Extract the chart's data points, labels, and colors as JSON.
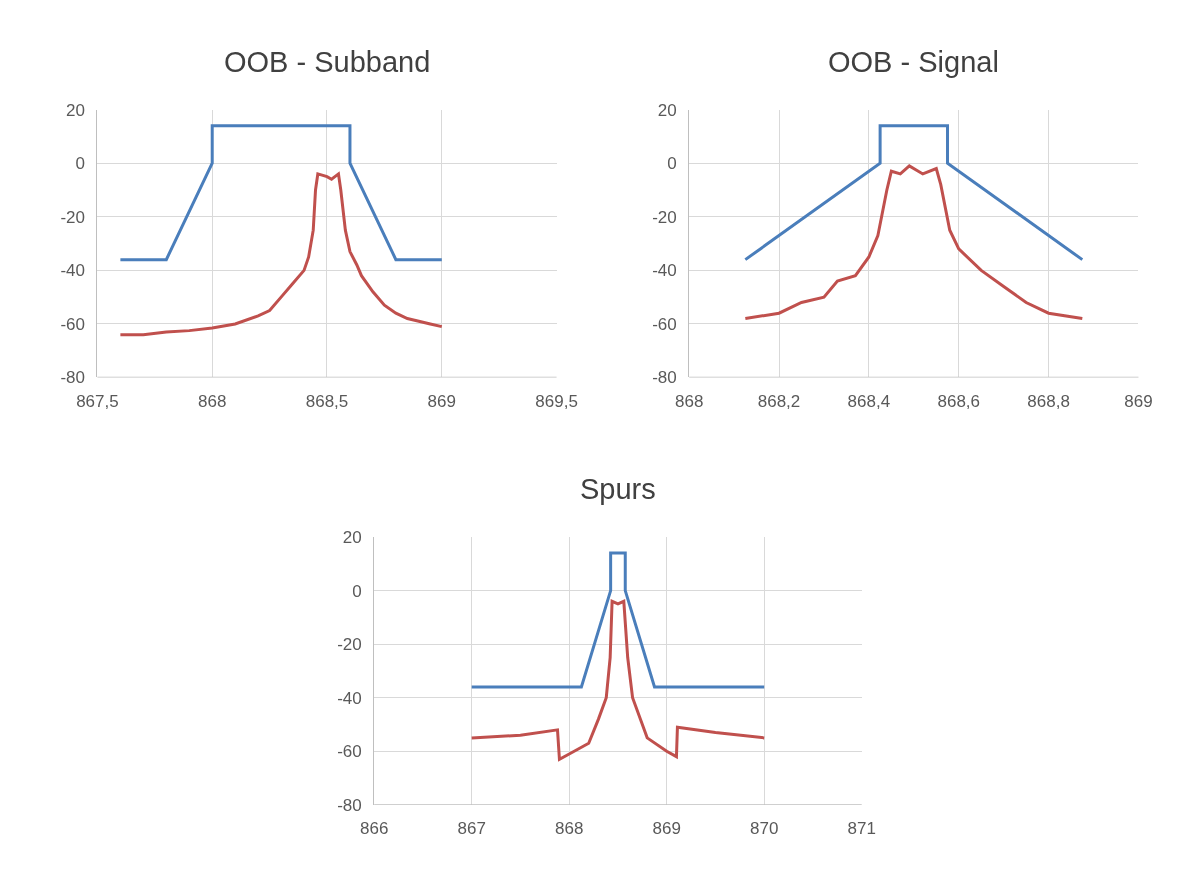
{
  "chart_data": [
    {
      "type": "line",
      "title": "OOB - Subband",
      "xlim": [
        867.5,
        869.5
      ],
      "xticks": [
        {
          "value": 867.5,
          "label": "867,5"
        },
        868,
        {
          "value": 868.5,
          "label": "868,5"
        },
        869,
        {
          "value": 869.5,
          "label": "869,5"
        }
      ],
      "ylim": [
        -80,
        20
      ],
      "yticks": [
        -80,
        -60,
        -40,
        -20,
        0,
        20
      ],
      "grid": true,
      "series": [
        {
          "color": "#4a7ebb",
          "x": [
            867.6,
            867.8,
            868,
            868,
            868.6,
            868.6,
            868.8,
            869
          ],
          "values": [
            -36,
            -36,
            0,
            14,
            14,
            0,
            -36,
            -36
          ]
        },
        {
          "color": "#c0504d",
          "x": [
            867.6,
            867.7,
            867.8,
            867.9,
            868.0,
            868.1,
            868.2,
            868.25,
            868.3,
            868.35,
            868.4,
            868.42,
            868.44,
            868.45,
            868.46,
            868.5,
            868.52,
            868.55,
            868.56,
            868.58,
            868.6,
            868.63,
            868.65,
            868.7,
            868.75,
            868.8,
            868.85,
            868.9,
            868.95,
            869.0
          ],
          "values": [
            -64,
            -64,
            -63,
            -62.5,
            -61.5,
            -60,
            -57,
            -55,
            -50,
            -45,
            -40,
            -35,
            -25,
            -10,
            -4,
            -5,
            -6,
            -4,
            -10,
            -25,
            -33,
            -38,
            -42,
            -48,
            -53,
            -56,
            -58,
            -59,
            -60,
            -61
          ]
        }
      ]
    },
    {
      "type": "line",
      "title": "OOB - Signal",
      "xlim": [
        868,
        869
      ],
      "xticks": [
        868,
        {
          "value": 868.2,
          "label": "868,2"
        },
        {
          "value": 868.4,
          "label": "868,4"
        },
        {
          "value": 868.6,
          "label": "868,6"
        },
        {
          "value": 868.8,
          "label": "868,8"
        },
        869
      ],
      "ylim": [
        -80,
        20
      ],
      "yticks": [
        -80,
        -60,
        -40,
        -20,
        0,
        20
      ],
      "grid": true,
      "series": [
        {
          "color": "#4a7ebb",
          "x": [
            868.125,
            868.425,
            868.425,
            868.575,
            868.575,
            868.875
          ],
          "values": [
            -36,
            0,
            14,
            14,
            0,
            -36
          ]
        },
        {
          "color": "#c0504d",
          "x": [
            868.125,
            868.2,
            868.25,
            868.3,
            868.33,
            868.37,
            868.4,
            868.42,
            868.44,
            868.45,
            868.47,
            868.49,
            868.52,
            868.55,
            868.56,
            868.58,
            868.6,
            868.65,
            868.7,
            868.75,
            868.8,
            868.875
          ],
          "values": [
            -58,
            -56,
            -52,
            -50,
            -44,
            -42,
            -35,
            -27,
            -10,
            -3,
            -4,
            -1,
            -4,
            -2,
            -8,
            -25,
            -32,
            -40,
            -46,
            -52,
            -56,
            -58
          ]
        }
      ]
    },
    {
      "type": "line",
      "title": "Spurs",
      "xlim": [
        866,
        871
      ],
      "xticks": [
        866,
        867,
        868,
        869,
        870,
        871
      ],
      "ylim": [
        -80,
        20
      ],
      "yticks": [
        -80,
        -60,
        -40,
        -20,
        0,
        20
      ],
      "grid": true,
      "series": [
        {
          "color": "#4a7ebb",
          "x": [
            867,
            868.125,
            868.425,
            868.425,
            868.575,
            868.575,
            868.875,
            870
          ],
          "values": [
            -36,
            -36,
            0,
            14,
            14,
            0,
            -36,
            -36
          ]
        },
        {
          "color": "#c0504d",
          "x": [
            867,
            867.5,
            867.88,
            867.9,
            868.0,
            868.2,
            868.3,
            868.38,
            868.42,
            868.44,
            868.5,
            868.56,
            868.6,
            868.65,
            868.8,
            869.0,
            869.1,
            869.11,
            869.5,
            870
          ],
          "values": [
            -55,
            -54,
            -52,
            -63,
            -61,
            -57,
            -48,
            -40,
            -25,
            -4,
            -5,
            -4,
            -25,
            -40,
            -55,
            -60,
            -62,
            -51,
            -53,
            -55
          ]
        }
      ]
    }
  ]
}
